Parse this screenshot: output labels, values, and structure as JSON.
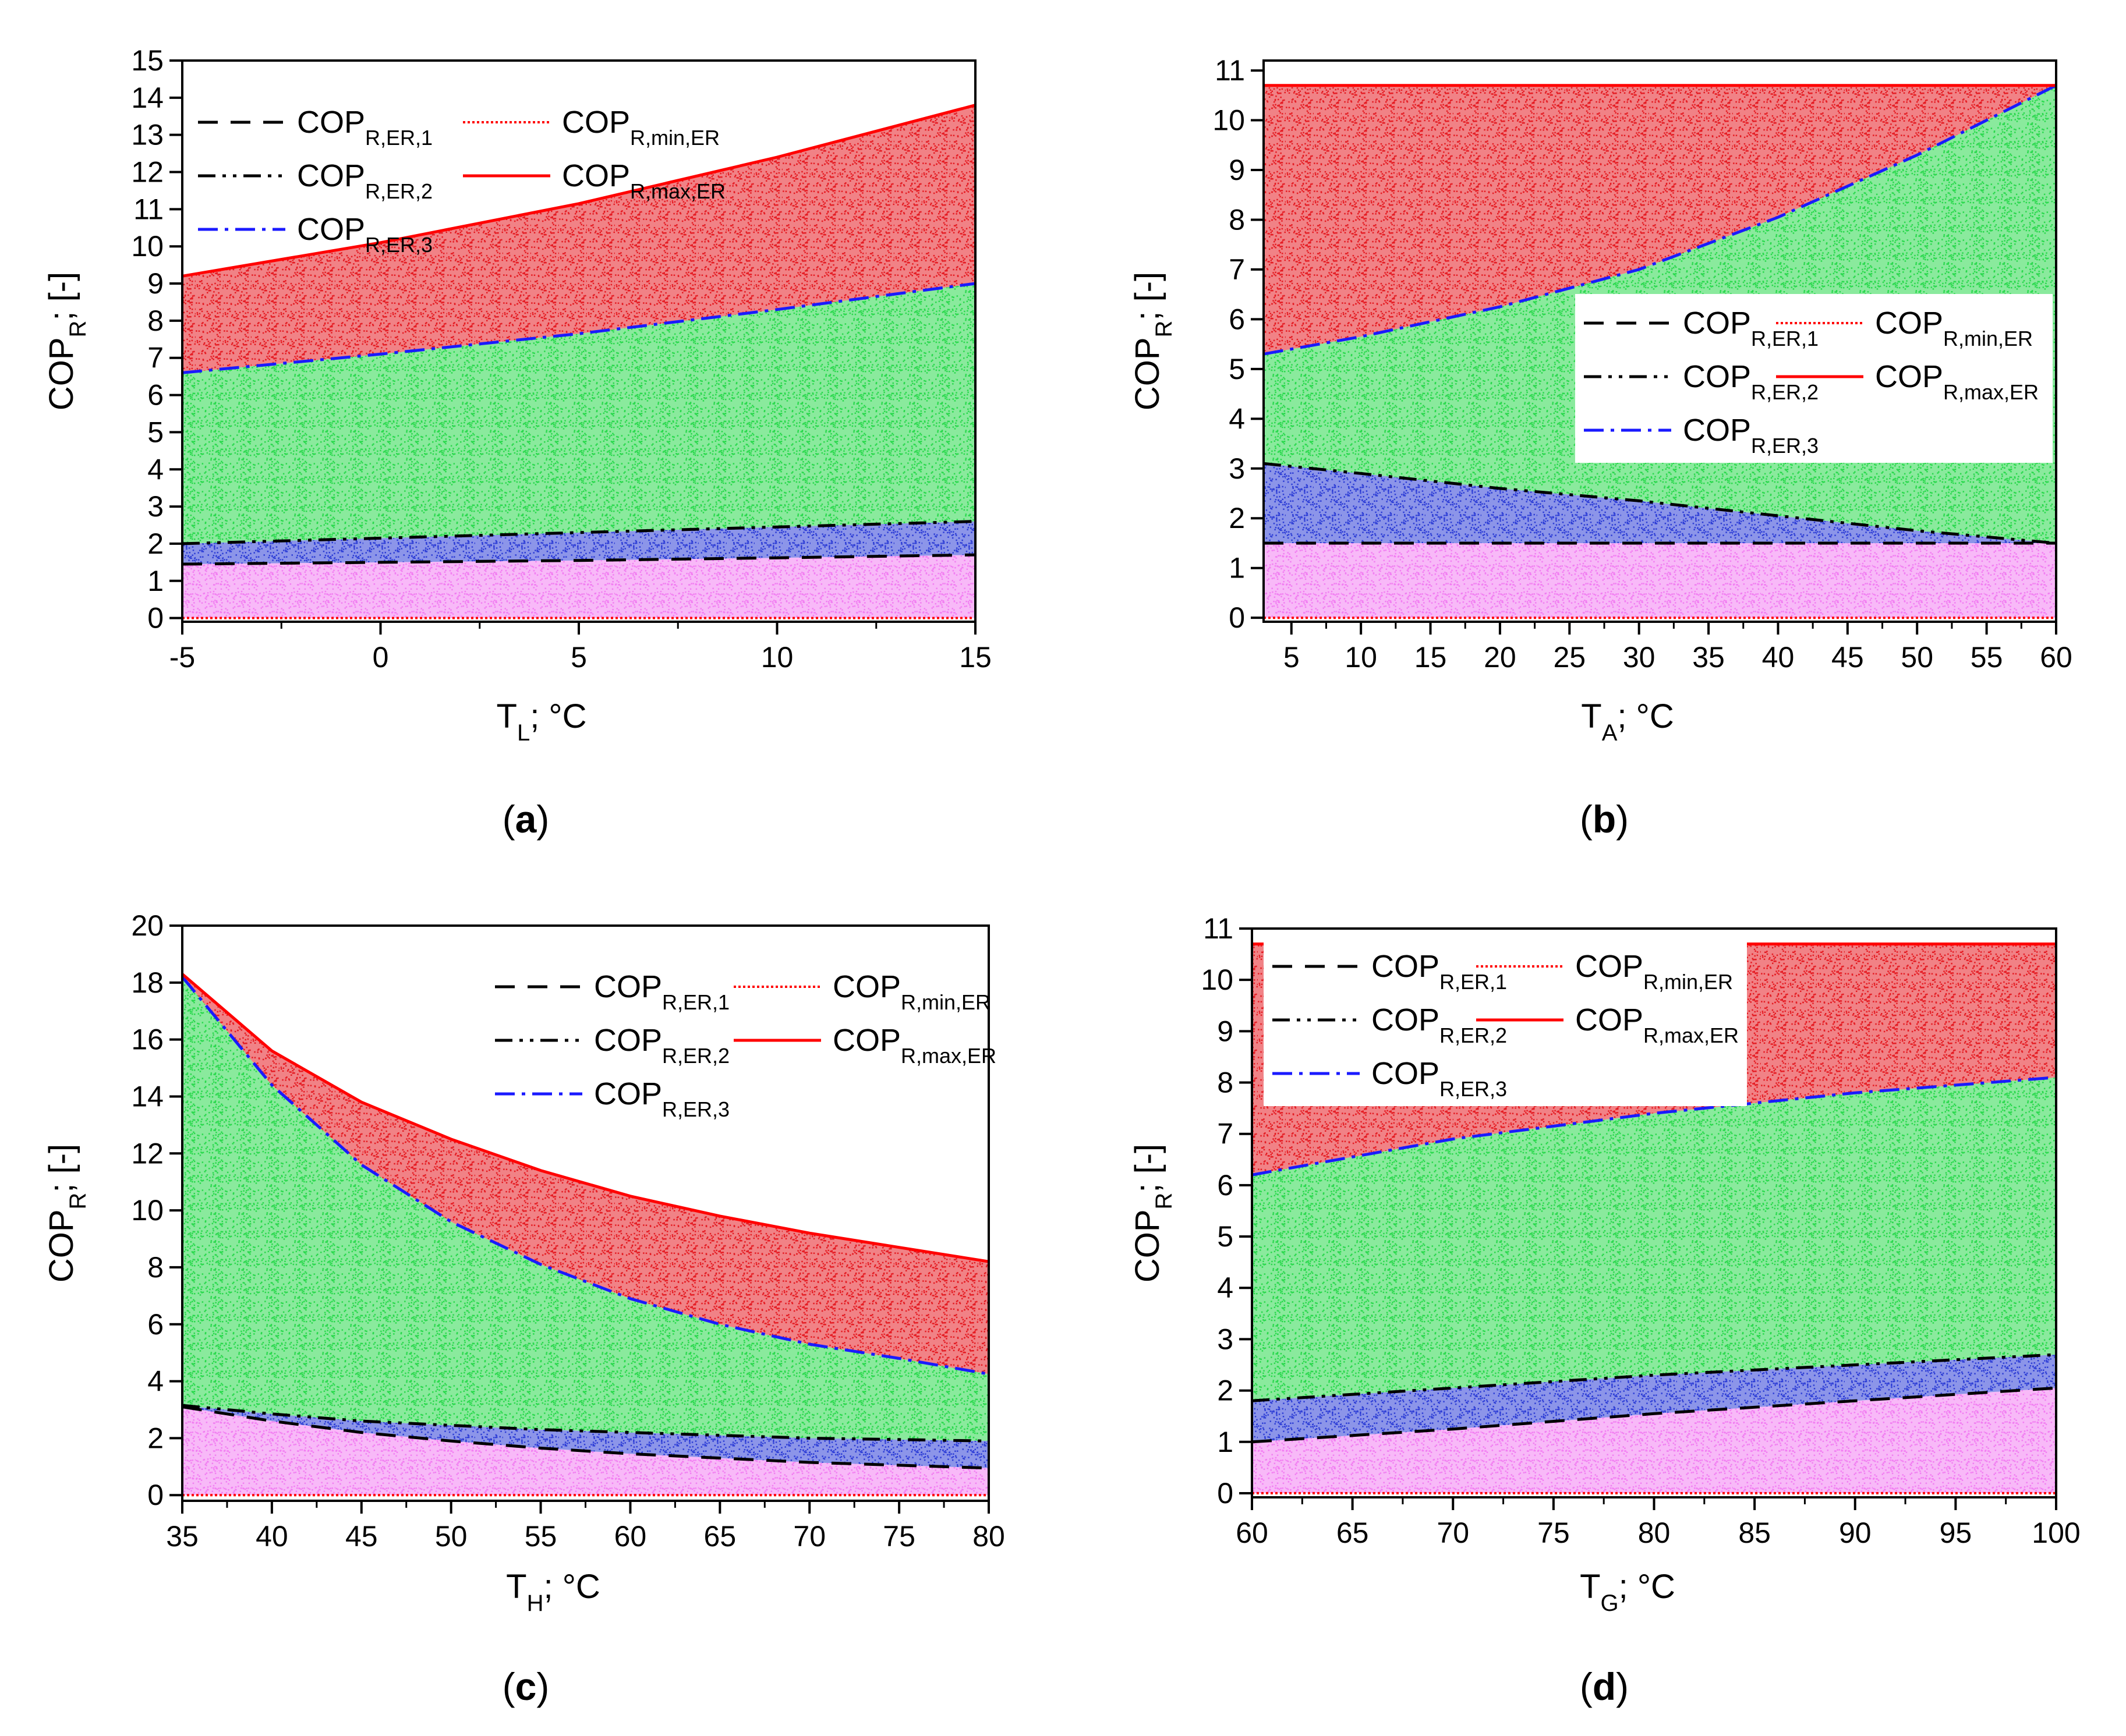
{
  "figure": {
    "panels": [
      "a",
      "b",
      "c",
      "d"
    ],
    "colors": {
      "band_pink": "#f27ff2",
      "band_blue": "#2e3ed6",
      "band_green": "#2ad94d",
      "band_red": "#e51c23",
      "line_er1": "#000000",
      "line_er2": "#000000",
      "line_er3": "#1a1aff",
      "line_min": "#ff0000",
      "line_max": "#ff0000",
      "axis": "#000000"
    }
  },
  "legend": {
    "er1": {
      "main": "COP",
      "sub": "R,ER,1"
    },
    "er2": {
      "main": "COP",
      "sub": "R,ER,2"
    },
    "er3": {
      "main": "COP",
      "sub": "R,ER,3"
    },
    "min": {
      "main": "COP",
      "sub": "R,min,ER"
    },
    "max": {
      "main": "COP",
      "sub": "R,max,ER"
    }
  },
  "chart_data": [
    {
      "type": "area",
      "panel_label": "a",
      "title": "",
      "xlabel": {
        "main": "T",
        "sub": "L",
        "rest": "; °C"
      },
      "ylabel": {
        "main": "COP",
        "sub": "R",
        "rest": "; [-]"
      },
      "xlim": [
        -5,
        15
      ],
      "ylim": [
        -0.1,
        15
      ],
      "xticks": [
        -5,
        0,
        5,
        10,
        15
      ],
      "yticks": [
        0,
        1,
        2,
        3,
        4,
        5,
        6,
        7,
        8,
        9,
        10,
        11,
        12,
        13,
        14,
        15
      ],
      "legend_position": "top-left",
      "x": [
        -5,
        0,
        5,
        10,
        15
      ],
      "series": [
        {
          "name": "COP R,min,ER",
          "values": [
            0,
            0,
            0,
            0,
            0
          ]
        },
        {
          "name": "COP R,ER,1",
          "values": [
            1.45,
            1.5,
            1.55,
            1.62,
            1.7
          ]
        },
        {
          "name": "COP R,ER,2",
          "values": [
            2.0,
            2.15,
            2.3,
            2.45,
            2.6
          ]
        },
        {
          "name": "COP R,ER,3",
          "values": [
            6.6,
            7.1,
            7.65,
            8.3,
            9.0
          ]
        },
        {
          "name": "COP R,max,ER",
          "values": [
            9.2,
            10.1,
            11.15,
            12.4,
            13.8
          ]
        }
      ]
    },
    {
      "type": "area",
      "panel_label": "b",
      "title": "",
      "xlabel": {
        "main": "T",
        "sub": "A",
        "rest": "; °C"
      },
      "ylabel": {
        "main": "COP",
        "sub": "R",
        "rest": "; [-]"
      },
      "xlim": [
        3,
        60
      ],
      "ylim": [
        -0.08,
        11.2
      ],
      "xticks": [
        5,
        10,
        15,
        20,
        25,
        30,
        35,
        40,
        45,
        50,
        55,
        60
      ],
      "yticks": [
        0,
        1,
        2,
        3,
        4,
        5,
        6,
        7,
        8,
        9,
        10,
        11
      ],
      "legend_position": "center-right",
      "x": [
        3,
        10,
        20,
        30,
        40,
        50,
        60
      ],
      "series": [
        {
          "name": "COP R,min,ER",
          "values": [
            0,
            0,
            0,
            0,
            0,
            0,
            0
          ]
        },
        {
          "name": "COP R,ER,1",
          "values": [
            1.5,
            1.5,
            1.5,
            1.5,
            1.5,
            1.5,
            1.5
          ]
        },
        {
          "name": "COP R,ER,2",
          "values": [
            3.1,
            2.9,
            2.6,
            2.35,
            2.05,
            1.75,
            1.5
          ]
        },
        {
          "name": "COP R,ER,3",
          "values": [
            5.3,
            5.65,
            6.25,
            7.0,
            8.05,
            9.3,
            10.7
          ]
        },
        {
          "name": "COP R,max,ER",
          "values": [
            10.7,
            10.7,
            10.7,
            10.7,
            10.7,
            10.7,
            10.7
          ]
        }
      ]
    },
    {
      "type": "area",
      "panel_label": "c",
      "title": "",
      "xlabel": {
        "main": "T",
        "sub": "H",
        "rest": "; °C"
      },
      "ylabel": {
        "main": "COP",
        "sub": "R",
        "rest": "; [-]"
      },
      "xlim": [
        35,
        80
      ],
      "ylim": [
        -0.2,
        20
      ],
      "xticks": [
        35,
        40,
        45,
        50,
        55,
        60,
        65,
        70,
        75,
        80
      ],
      "yticks": [
        0,
        2,
        4,
        6,
        8,
        10,
        12,
        14,
        16,
        18,
        20
      ],
      "legend_position": "top-right",
      "x": [
        35,
        40,
        45,
        50,
        55,
        60,
        65,
        70,
        75,
        80
      ],
      "series": [
        {
          "name": "COP R,min,ER",
          "values": [
            0,
            0,
            0,
            0,
            0,
            0,
            0,
            0,
            0,
            0
          ]
        },
        {
          "name": "COP R,ER,1",
          "values": [
            3.1,
            2.6,
            2.2,
            1.9,
            1.65,
            1.45,
            1.3,
            1.15,
            1.05,
            0.95
          ]
        },
        {
          "name": "COP R,ER,2",
          "values": [
            3.15,
            2.85,
            2.6,
            2.45,
            2.3,
            2.2,
            2.1,
            2.0,
            1.95,
            1.9
          ]
        },
        {
          "name": "COP R,ER,3",
          "values": [
            18.2,
            14.4,
            11.6,
            9.6,
            8.1,
            6.9,
            6.0,
            5.3,
            4.8,
            4.25
          ]
        },
        {
          "name": "COP R,max,ER",
          "values": [
            18.3,
            15.6,
            13.8,
            12.5,
            11.4,
            10.5,
            9.8,
            9.2,
            8.7,
            8.2
          ]
        }
      ]
    },
    {
      "type": "area",
      "panel_label": "d",
      "title": "",
      "xlabel": {
        "main": "T",
        "sub": "G",
        "rest": "; °C"
      },
      "ylabel": {
        "main": "COP",
        "sub": "R",
        "rest": "; [-]"
      },
      "xlim": [
        60,
        100
      ],
      "ylim": [
        -0.08,
        11
      ],
      "xticks": [
        60,
        65,
        70,
        75,
        80,
        85,
        90,
        95,
        100
      ],
      "yticks": [
        0,
        1,
        2,
        3,
        4,
        5,
        6,
        7,
        8,
        9,
        10,
        11
      ],
      "legend_position": "top-left",
      "x": [
        60,
        70,
        80,
        90,
        100
      ],
      "series": [
        {
          "name": "COP R,min,ER",
          "values": [
            0,
            0,
            0,
            0,
            0
          ]
        },
        {
          "name": "COP R,ER,1",
          "values": [
            1.0,
            1.25,
            1.55,
            1.8,
            2.05
          ]
        },
        {
          "name": "COP R,ER,2",
          "values": [
            1.8,
            2.05,
            2.3,
            2.5,
            2.7
          ]
        },
        {
          "name": "COP R,ER,3",
          "values": [
            6.2,
            6.9,
            7.4,
            7.8,
            8.1
          ]
        },
        {
          "name": "COP R,max,ER",
          "values": [
            10.7,
            10.7,
            10.7,
            10.7,
            10.7
          ]
        }
      ]
    }
  ]
}
